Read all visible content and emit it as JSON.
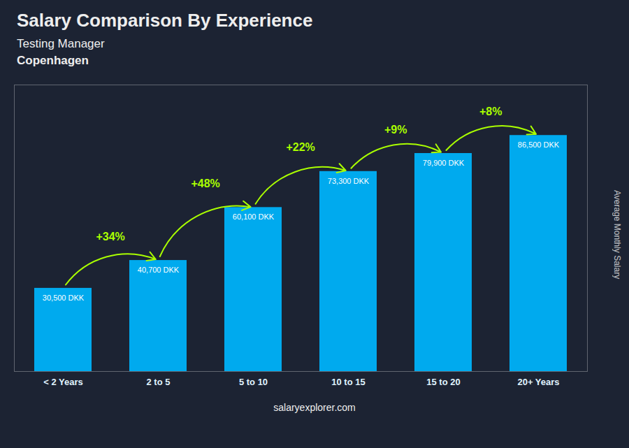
{
  "chart_data": {
    "type": "bar",
    "title": "Salary Comparison By Experience",
    "subtitle": [
      "Testing Manager",
      "Copenhagen"
    ],
    "categories": [
      "< 2 Years",
      "2 to 5",
      "5 to 10",
      "10 to 15",
      "15 to 20",
      "20+ Years"
    ],
    "values": [
      30500,
      40700,
      60100,
      73300,
      79900,
      86500
    ],
    "value_labels": [
      "30,500 DKK",
      "40,700 DKK",
      "60,100 DKK",
      "73,300 DKK",
      "79,900 DKK",
      "86,500 DKK"
    ],
    "data_labels": true,
    "color": "#00aaee",
    "ylabel": "Average Monthly Salary",
    "ylim": [
      0,
      105000
    ],
    "tick_labels": "x",
    "grid": false,
    "annotations": [
      {
        "text": "+34%",
        "color": "#aaff00"
      },
      {
        "text": "+48%",
        "color": "#aaff00"
      },
      {
        "text": "+22%",
        "color": "#aaff00"
      },
      {
        "text": "+9%",
        "color": "#aaff00"
      },
      {
        "text": "+8%",
        "color": "#aaff00"
      }
    ],
    "caption": "salaryexplorer.com"
  }
}
